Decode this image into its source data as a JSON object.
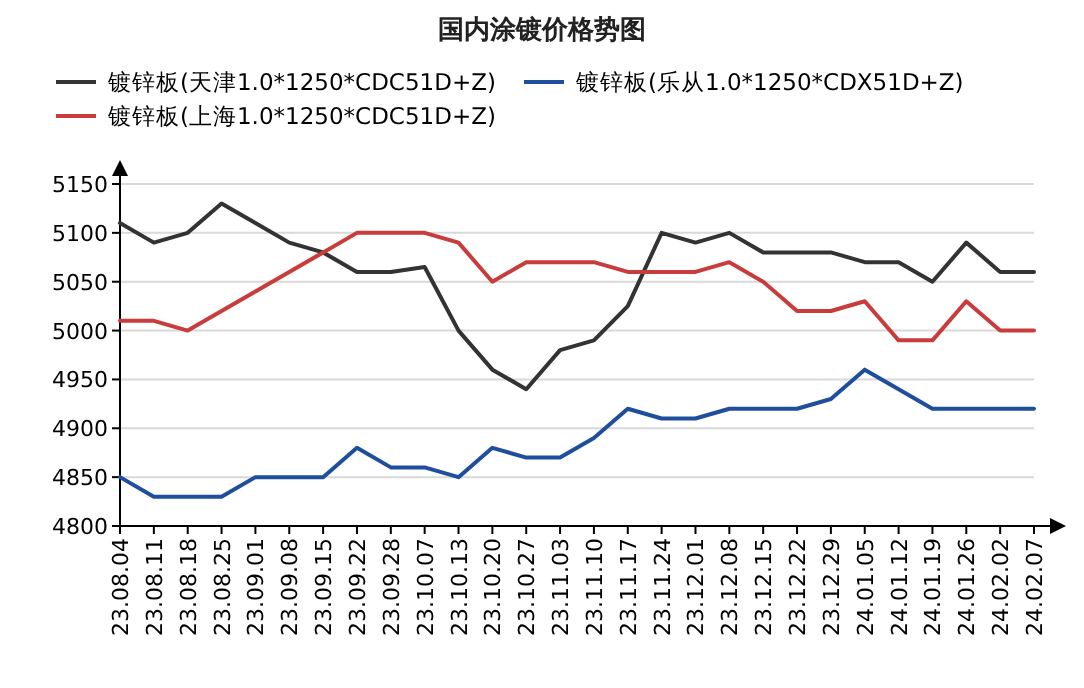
{
  "chart_data": {
    "type": "line",
    "title": "国内涂镀价格势图",
    "categories": [
      "23.08.04",
      "23.08.11",
      "23.08.18",
      "23.08.25",
      "23.09.01",
      "23.09.08",
      "23.09.15",
      "23.09.22",
      "23.09.28",
      "23.10.07",
      "23.10.13",
      "23.10.20",
      "23.10.27",
      "23.11.03",
      "23.11.10",
      "23.11.17",
      "23.11.24",
      "23.12.01",
      "23.12.08",
      "23.12.15",
      "23.12.22",
      "23.12.29",
      "24.01.05",
      "24.01.12",
      "24.01.19",
      "24.01.26",
      "24.02.02",
      "24.02.07"
    ],
    "series": [
      {
        "name": "镀锌板(天津1.0*1250*CDC51D+Z)",
        "color": "#333333",
        "values": [
          5110,
          5090,
          5100,
          5130,
          5110,
          5090,
          5080,
          5060,
          5060,
          5065,
          5000,
          4960,
          4940,
          4980,
          4990,
          5025,
          5100,
          5090,
          5100,
          5080,
          5080,
          5080,
          5070,
          5070,
          5050,
          5090,
          5060,
          5060
        ]
      },
      {
        "name": "镀锌板(乐从1.0*1250*CDX51D+Z)",
        "color": "#1f4e9c",
        "values": [
          4850,
          4830,
          4830,
          4830,
          4850,
          4850,
          4850,
          4880,
          4860,
          4860,
          4850,
          4880,
          4870,
          4870,
          4890,
          4920,
          4910,
          4910,
          4920,
          4920,
          4920,
          4930,
          4960,
          4940,
          4920,
          4920,
          4920,
          4920
        ]
      },
      {
        "name": "镀锌板(上海1.0*1250*CDC51D+Z)",
        "color": "#c83c3c",
        "values": [
          5010,
          5010,
          5000,
          5020,
          5040,
          5060,
          5080,
          5100,
          5100,
          5100,
          5090,
          5050,
          5070,
          5070,
          5070,
          5060,
          5060,
          5060,
          5070,
          5050,
          5020,
          5020,
          5030,
          4990,
          4990,
          5030,
          5000,
          5000
        ]
      }
    ],
    "ylim": [
      4800,
      5150
    ],
    "yticks": [
      4800,
      4850,
      4900,
      4950,
      5000,
      5050,
      5100,
      5150
    ],
    "grid": "y",
    "legend": "top",
    "marker": "none",
    "line_style": "solid"
  }
}
